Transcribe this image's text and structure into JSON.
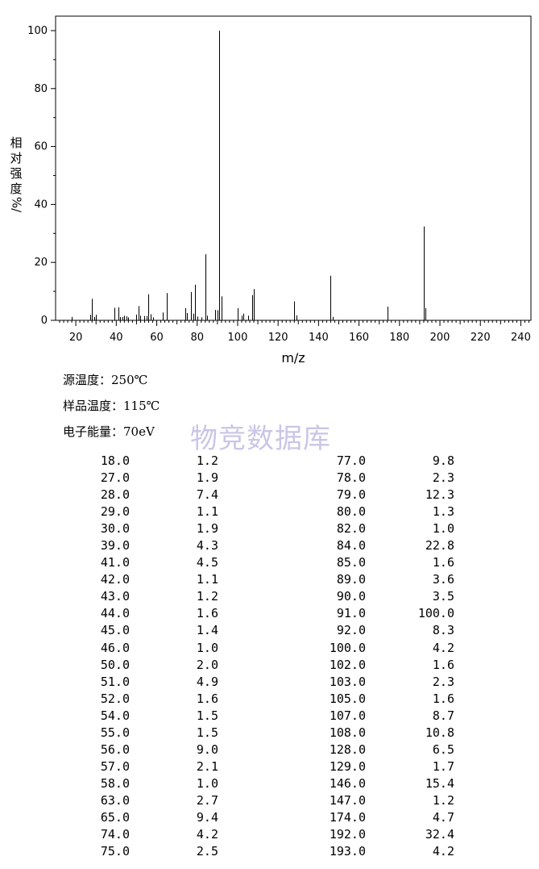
{
  "chart_data": {
    "type": "bar",
    "xlabel": "m/z",
    "ylabel_chars": [
      "相",
      "对",
      "强",
      "度"
    ],
    "ylabel_unit": "%/",
    "xlim": [
      10,
      245
    ],
    "ylim": [
      0,
      105
    ],
    "xticks": [
      "20",
      "40",
      "60",
      "80",
      "100",
      "120",
      "140",
      "160",
      "180",
      "200",
      "220",
      "240"
    ],
    "yticks": [
      "0",
      "20",
      "40",
      "60",
      "80",
      "100"
    ],
    "x": [
      18,
      27,
      28,
      29,
      30,
      39,
      41,
      42,
      43,
      44,
      45,
      46,
      50,
      51,
      52,
      54,
      55,
      56,
      57,
      58,
      63,
      65,
      74,
      75,
      77,
      78,
      79,
      80,
      82,
      84,
      85,
      89,
      90,
      91,
      92,
      100,
      102,
      103,
      105,
      107,
      108,
      128,
      129,
      146,
      147,
      174,
      192,
      193
    ],
    "values": [
      1.2,
      1.9,
      7.4,
      1.1,
      1.9,
      4.3,
      4.5,
      1.1,
      1.2,
      1.6,
      1.4,
      1.0,
      2.0,
      4.9,
      1.6,
      1.5,
      1.5,
      9.0,
      2.1,
      1.0,
      2.7,
      9.4,
      4.2,
      2.5,
      9.8,
      2.3,
      12.3,
      1.3,
      1.0,
      22.8,
      1.6,
      3.6,
      3.5,
      100.0,
      8.3,
      4.2,
      1.6,
      2.3,
      1.6,
      8.7,
      10.8,
      6.5,
      1.7,
      15.4,
      1.2,
      4.7,
      32.4,
      4.2
    ]
  },
  "conditions": {
    "source_temp": "源温度：250℃",
    "sample_temp": "样品温度：115℃",
    "electron_energy": "电子能量：70eV"
  },
  "watermark": "物竞数据库",
  "peak_table": [
    [
      "18.0",
      "1.2",
      "77.0",
      "9.8"
    ],
    [
      "27.0",
      "1.9",
      "78.0",
      "2.3"
    ],
    [
      "28.0",
      "7.4",
      "79.0",
      "12.3"
    ],
    [
      "29.0",
      "1.1",
      "80.0",
      "1.3"
    ],
    [
      "30.0",
      "1.9",
      "82.0",
      "1.0"
    ],
    [
      "39.0",
      "4.3",
      "84.0",
      "22.8"
    ],
    [
      "41.0",
      "4.5",
      "85.0",
      "1.6"
    ],
    [
      "42.0",
      "1.1",
      "89.0",
      "3.6"
    ],
    [
      "43.0",
      "1.2",
      "90.0",
      "3.5"
    ],
    [
      "44.0",
      "1.6",
      "91.0",
      "100.0"
    ],
    [
      "45.0",
      "1.4",
      "92.0",
      "8.3"
    ],
    [
      "46.0",
      "1.0",
      "100.0",
      "4.2"
    ],
    [
      "50.0",
      "2.0",
      "102.0",
      "1.6"
    ],
    [
      "51.0",
      "4.9",
      "103.0",
      "2.3"
    ],
    [
      "52.0",
      "1.6",
      "105.0",
      "1.6"
    ],
    [
      "54.0",
      "1.5",
      "107.0",
      "8.7"
    ],
    [
      "55.0",
      "1.5",
      "108.0",
      "10.8"
    ],
    [
      "56.0",
      "9.0",
      "128.0",
      "6.5"
    ],
    [
      "57.0",
      "2.1",
      "129.0",
      "1.7"
    ],
    [
      "58.0",
      "1.0",
      "146.0",
      "15.4"
    ],
    [
      "63.0",
      "2.7",
      "147.0",
      "1.2"
    ],
    [
      "65.0",
      "9.4",
      "174.0",
      "4.7"
    ],
    [
      "74.0",
      "4.2",
      "192.0",
      "32.4"
    ],
    [
      "75.0",
      "2.5",
      "193.0",
      "4.2"
    ]
  ]
}
